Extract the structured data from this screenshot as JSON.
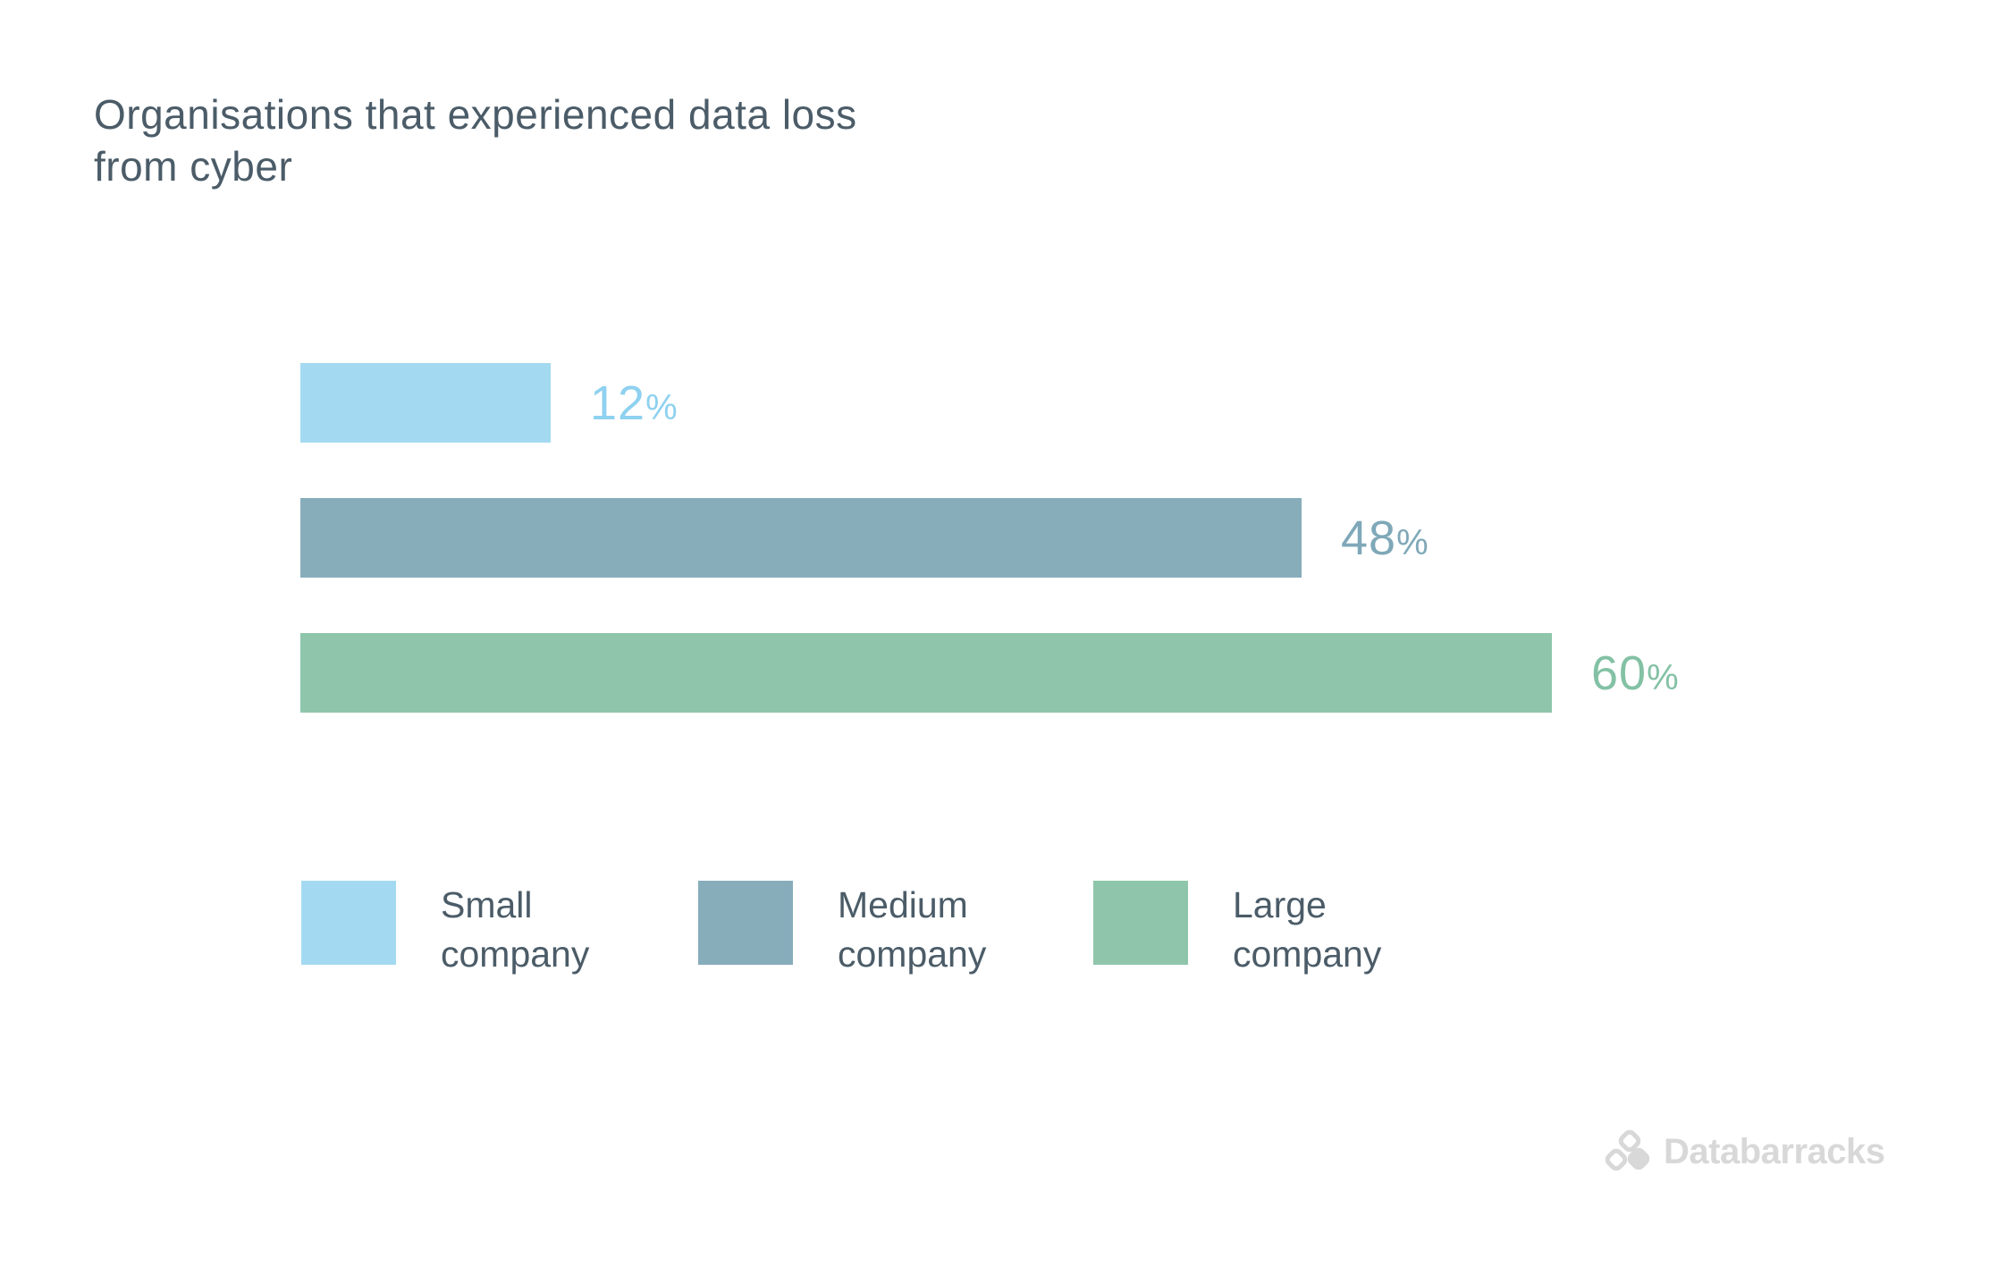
{
  "title": {
    "line1": "Organisations that experienced data loss",
    "line2": "from cyber"
  },
  "chart_data": {
    "type": "bar",
    "orientation": "horizontal",
    "title": "Organisations that experienced data loss from cyber",
    "categories": [
      "Small company",
      "Medium company",
      "Large company"
    ],
    "values": [
      12,
      48,
      60
    ],
    "unit": "%",
    "value_labels": [
      "12%",
      "48%",
      "60%"
    ],
    "xlim": [
      0,
      60
    ],
    "grid": false,
    "legend_position": "bottom",
    "bar_colors": [
      "#a4daf1",
      "#87adbb",
      "#8fc6ab"
    ],
    "value_label_colors": [
      "#8ed1f0",
      "#7fa8b8",
      "#83c1a4"
    ]
  },
  "legend": {
    "items": [
      {
        "label": "Small company",
        "color": "#a4daf1"
      },
      {
        "label": "Medium company",
        "color": "#87adbb"
      },
      {
        "label": "Large company",
        "color": "#8fc6ab"
      }
    ]
  },
  "logo": {
    "text": "Databarracks",
    "icon": "databarracks-cubes-icon",
    "color": "#d8d8d8"
  },
  "colors": {
    "background": "#ffffff",
    "title_text": "#4b5c68"
  }
}
